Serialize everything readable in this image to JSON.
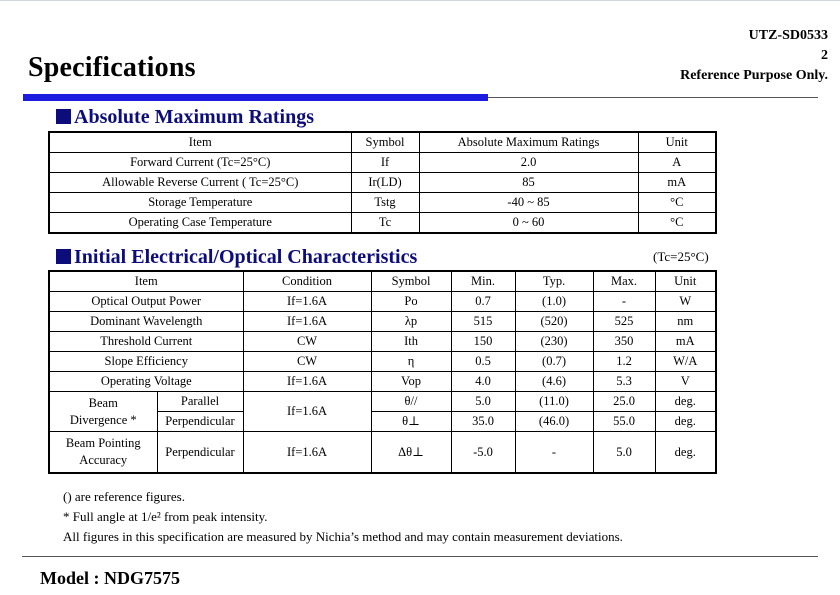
{
  "header": {
    "title": "Specifications",
    "doc_id": "UTZ-SD0533",
    "page": "2",
    "reference": "Reference Purpose Only."
  },
  "section1": {
    "heading": "Absolute Maximum Ratings",
    "columns": [
      "Item",
      "Symbol",
      "Absolute Maximum Ratings",
      "Unit"
    ],
    "rows": [
      [
        "Forward Current (Tc=25°C)",
        "If",
        "2.0",
        "A"
      ],
      [
        "Allowable Reverse Current ( Tc=25°C)",
        "Ir(LD)",
        "85",
        "mA"
      ],
      [
        "Storage Temperature",
        "Tstg",
        "-40 ~ 85",
        "°C"
      ],
      [
        "Operating Case Temperature",
        "Tc",
        "0 ~ 60",
        "°C"
      ]
    ]
  },
  "section2": {
    "heading": "Initial Electrical/Optical Characteristics",
    "condition_note": "(Tc=25°C)",
    "columns": [
      "Item",
      "Condition",
      "Symbol",
      "Min.",
      "Typ.",
      "Max.",
      "Unit"
    ],
    "rows": [
      [
        "Optical Output Power",
        "If=1.6A",
        "Po",
        "0.7",
        "(1.0)",
        "-",
        "W"
      ],
      [
        "Dominant Wavelength",
        "If=1.6A",
        "λp",
        "515",
        "(520)",
        "525",
        "nm"
      ],
      [
        "Threshold Current",
        "CW",
        "Ith",
        "150",
        "(230)",
        "350",
        "mA"
      ],
      [
        "Slope Efficiency",
        "CW",
        "η",
        "0.5",
        "(0.7)",
        "1.2",
        "W/A"
      ],
      [
        "Operating Voltage",
        "If=1.6A",
        "Vop",
        "4.0",
        "(4.6)",
        "5.3",
        "V"
      ]
    ],
    "beam_divergence": {
      "label_line1": "Beam",
      "label_line2": "Divergence *",
      "condition": "If=1.6A",
      "parallel": {
        "sub": "Parallel",
        "symbol": "θ//",
        "min": "5.0",
        "typ": "(11.0)",
        "max": "25.0",
        "unit": "deg."
      },
      "perpendicular": {
        "sub": "Perpendicular",
        "symbol": "θ⊥",
        "min": "35.0",
        "typ": "(46.0)",
        "max": "55.0",
        "unit": "deg."
      }
    },
    "beam_pointing": {
      "label_line1": "Beam Pointing",
      "label_line2": "Accuracy",
      "sub": "Perpendicular",
      "condition": "If=1.6A",
      "symbol": "Δθ⊥",
      "min": "-5.0",
      "typ": "-",
      "max": "5.0",
      "unit": "deg."
    }
  },
  "notes": {
    "line1": "() are reference figures.",
    "line2": "* Full angle at 1/e² from peak intensity.",
    "line3": "All figures in this specification are measured by Nichia’s method and may contain measurement deviations."
  },
  "footer": {
    "model": "Model : NDG7575"
  }
}
